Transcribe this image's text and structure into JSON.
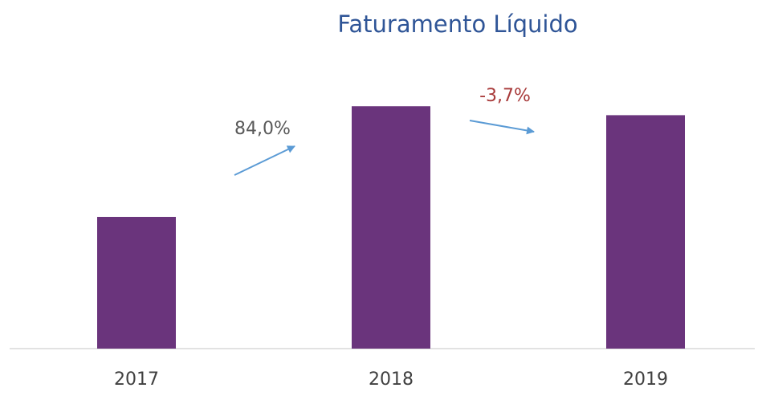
{
  "chart_data": {
    "type": "bar",
    "title": "Faturamento Líquido",
    "categories": [
      "2017",
      "2018",
      "2019"
    ],
    "values": [
      100,
      184,
      177.2
    ],
    "color": "#6a347c",
    "ylim": [
      0,
      200
    ],
    "annotations": [
      {
        "text": "84,0%",
        "color": "#595959"
      },
      {
        "text": "-3,7%",
        "color": "#a83a3a"
      }
    ]
  }
}
